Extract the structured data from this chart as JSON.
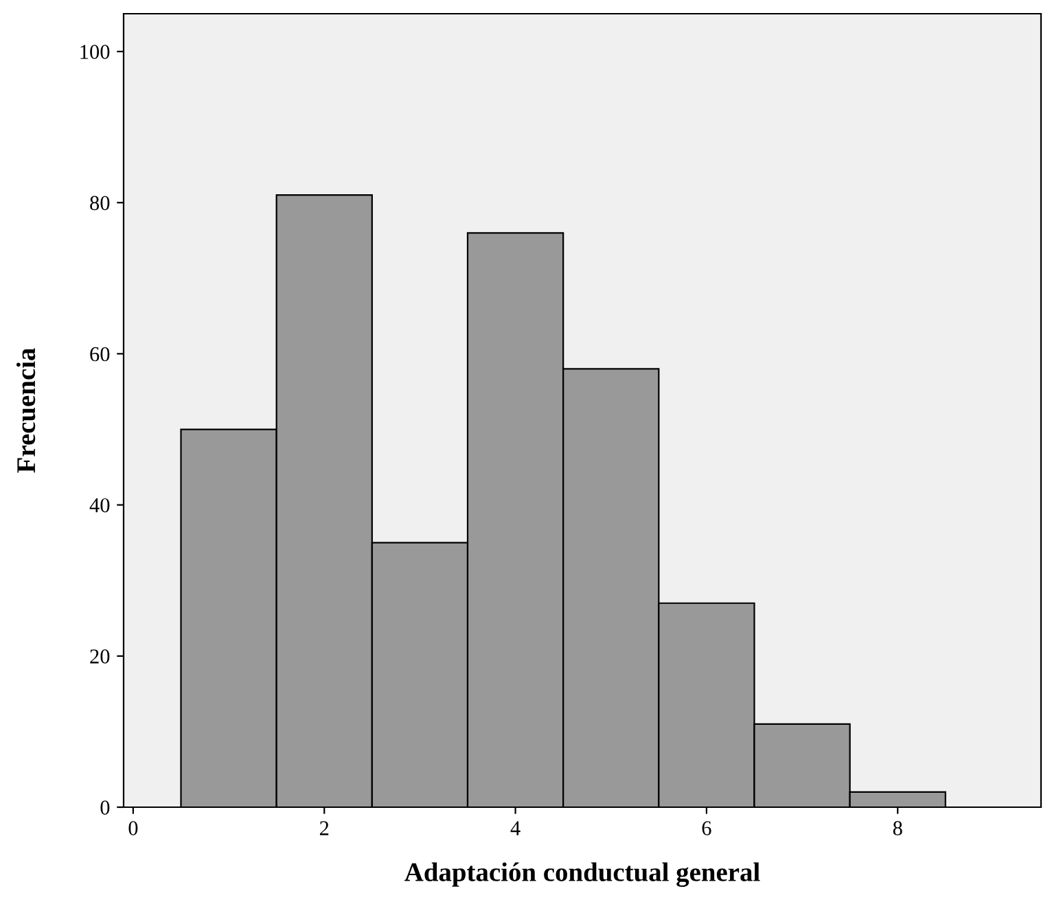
{
  "chart_data": {
    "type": "histogram",
    "xlabel": "Adaptación conductual general",
    "ylabel": "Frecuencia",
    "bins": [
      0.5,
      1.5,
      2.5,
      3.5,
      4.5,
      5.5,
      6.5,
      7.5,
      8.5
    ],
    "values": [
      50,
      81,
      35,
      76,
      58,
      27,
      11,
      2
    ],
    "color": "#999999",
    "xlim": [
      -0.1,
      9.5
    ],
    "xticks": [
      0,
      2,
      4,
      6,
      8
    ],
    "ylim": [
      0,
      105
    ],
    "yticks": [
      0,
      20,
      40,
      60,
      80,
      100
    ],
    "grid": false,
    "legend": false
  }
}
